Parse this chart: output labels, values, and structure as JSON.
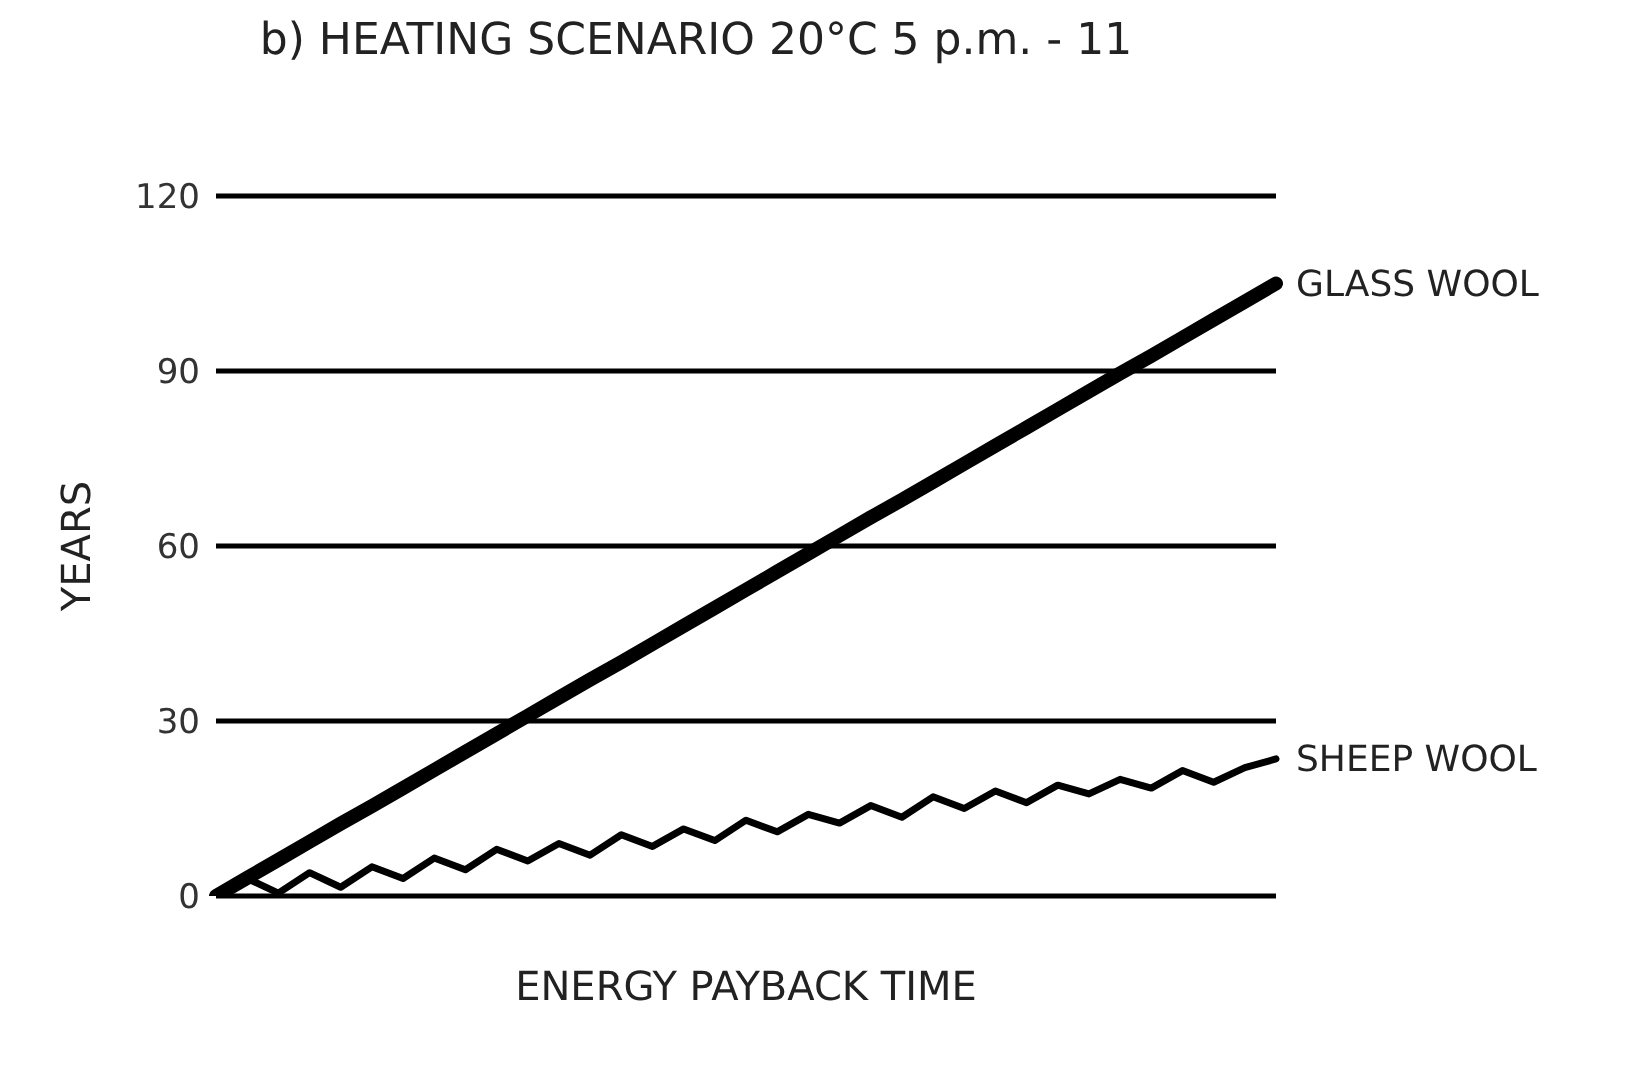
{
  "chart_data": {
    "type": "line",
    "title": "b) HEATING SCENARIO 20°C 5 p.m. - 11",
    "xlabel": "ENERGY PAYBACK TIME",
    "ylabel": "YEARS",
    "categories": [
      null,
      null,
      null,
      null,
      null,
      null,
      null,
      null,
      null,
      null,
      null,
      null,
      null,
      null,
      null,
      null,
      null,
      null,
      null,
      null,
      null,
      null,
      null,
      null,
      null,
      null,
      null,
      null,
      null,
      null,
      null,
      null,
      null,
      null,
      null
    ],
    "ylim": [
      0,
      120
    ],
    "yticks": [
      0,
      30,
      60,
      90,
      120
    ],
    "tick_labels": "y",
    "grid": "y",
    "marker": "none",
    "line_style": "solid",
    "legend": false,
    "series": [
      {
        "name": "GLASS WOOL",
        "color": "#000000",
        "values": [
          0,
          3.1,
          6.2,
          9.3,
          12.4,
          15.4,
          18.5,
          21.6,
          24.7,
          27.8,
          30.9,
          34,
          37.1,
          40.1,
          43.2,
          46.3,
          49.4,
          52.5,
          55.6,
          58.7,
          61.8,
          64.9,
          67.9,
          71,
          74.1,
          77.2,
          80.3,
          83.4,
          86.5,
          89.6,
          92.6,
          95.7,
          98.8,
          101.9,
          105
        ]
      },
      {
        "name": "SHEEP WOOL",
        "color": "#000000",
        "values": [
          0,
          3,
          0.5,
          4,
          1.5,
          5,
          3,
          6.5,
          4.5,
          8,
          6,
          9,
          7,
          10.5,
          8.5,
          11.5,
          9.5,
          13,
          11,
          14,
          12.5,
          15.5,
          13.5,
          17,
          15,
          18,
          16,
          19,
          17.5,
          20,
          18.5,
          21.5,
          19.5,
          22,
          23.5
        ]
      }
    ]
  }
}
